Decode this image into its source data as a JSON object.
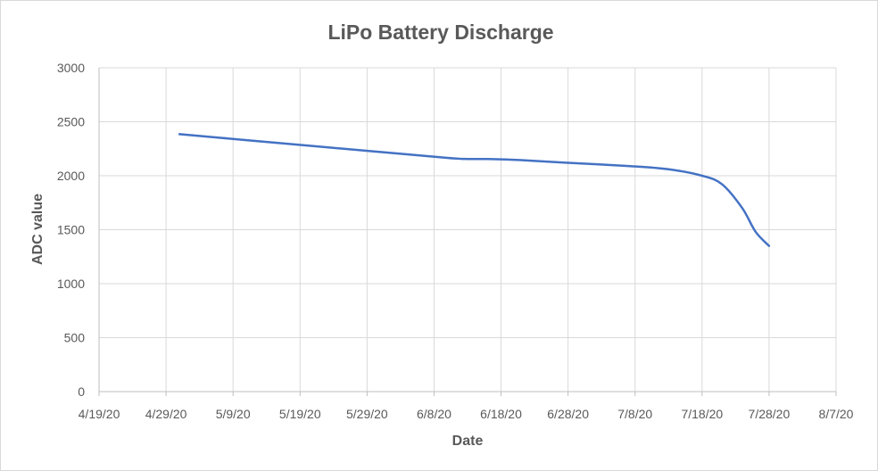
{
  "chart_data": {
    "type": "line",
    "title": "LiPo Battery Discharge",
    "xlabel": "Date",
    "ylabel": "ADC value",
    "x_ticks": [
      "4/19/20",
      "4/29/20",
      "5/9/20",
      "5/19/20",
      "5/29/20",
      "6/8/20",
      "6/18/20",
      "6/28/20",
      "7/8/20",
      "7/18/20",
      "7/28/20",
      "8/7/20"
    ],
    "y_ticks": [
      0,
      500,
      1000,
      1500,
      2000,
      2500,
      3000
    ],
    "xlim": [
      "4/19/20",
      "8/7/20"
    ],
    "ylim": [
      0,
      3000
    ],
    "grid": true,
    "legend": "none",
    "series": [
      {
        "color": "#4472c4",
        "points": [
          {
            "x": "5/1/20",
            "y": 2385
          },
          {
            "x": "5/11/20",
            "y": 2330
          },
          {
            "x": "5/21/20",
            "y": 2275
          },
          {
            "x": "5/31/20",
            "y": 2220
          },
          {
            "x": "6/10/20",
            "y": 2165
          },
          {
            "x": "6/13/20",
            "y": 2155
          },
          {
            "x": "6/16/20",
            "y": 2155
          },
          {
            "x": "6/21/20",
            "y": 2145
          },
          {
            "x": "6/28/20",
            "y": 2120
          },
          {
            "x": "7/7/20",
            "y": 2090
          },
          {
            "x": "7/13/20",
            "y": 2060
          },
          {
            "x": "7/18/20",
            "y": 2000
          },
          {
            "x": "7/21/20",
            "y": 1920
          },
          {
            "x": "7/24/20",
            "y": 1700
          },
          {
            "x": "7/26/20",
            "y": 1480
          },
          {
            "x": "7/28/20",
            "y": 1350
          }
        ]
      }
    ]
  }
}
